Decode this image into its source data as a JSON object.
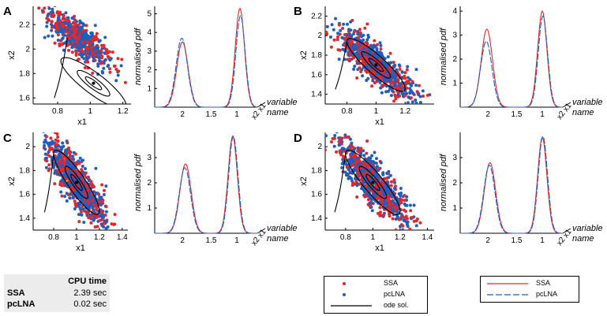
{
  "chart_data": [
    {
      "type": "scatter",
      "panel": "A",
      "xlabel": "x1",
      "ylabel": "x2",
      "xlim": [
        0.65,
        1.25
      ],
      "ylim": [
        1.55,
        2.35
      ],
      "xticks": [
        "0.8",
        "1",
        "1.2"
      ],
      "yticks": [
        "1.6",
        "1.8",
        "2",
        "2.2"
      ],
      "series": [
        {
          "name": "SSA",
          "color": "#e8262a"
        },
        {
          "name": "pcLNA",
          "color": "#1c5fbf"
        },
        {
          "name": "ode sol.",
          "color": "#000000"
        }
      ]
    },
    {
      "type": "line",
      "panel": "A-pdf",
      "ylabel": "normalised pdf",
      "xlabel": "variable name",
      "ylim": [
        0,
        5.4
      ],
      "yticks": [
        "1",
        "2",
        "3",
        "4",
        "5"
      ],
      "xticks": [
        "2",
        "1.5",
        "1"
      ],
      "var_ticks": [
        "x1",
        "x2"
      ],
      "series": [
        {
          "name": "SSA",
          "peaks": [
            3.5,
            5.3
          ]
        },
        {
          "name": "pcLNA",
          "peaks": [
            3.7,
            4.9
          ]
        }
      ]
    },
    {
      "type": "scatter",
      "panel": "B",
      "xlabel": "x1",
      "ylabel": "x2",
      "xlim": [
        0.65,
        1.4
      ],
      "ylim": [
        1.3,
        2.3
      ],
      "xticks": [
        "0.8",
        "1",
        "1.2"
      ],
      "yticks": [
        "1.4",
        "1.6",
        "1.8",
        "2",
        "2.2"
      ]
    },
    {
      "type": "line",
      "panel": "B-pdf",
      "ylabel": "normalised pdf",
      "xlabel": "variable name",
      "ylim": [
        0,
        4.2
      ],
      "yticks": [
        "1",
        "2",
        "3",
        "4"
      ],
      "xticks": [
        "2",
        "1.5",
        "1"
      ],
      "var_ticks": [
        "x1",
        "x2"
      ],
      "series": [
        {
          "name": "SSA",
          "peaks": [
            3.25,
            4.0
          ]
        },
        {
          "name": "pcLNA",
          "peaks": [
            2.75,
            3.8
          ]
        }
      ]
    },
    {
      "type": "scatter",
      "panel": "C",
      "xlabel": "x1",
      "ylabel": "x2",
      "xlim": [
        0.62,
        1.45
      ],
      "ylim": [
        1.3,
        2.12
      ],
      "xticks": [
        "0.8",
        "1",
        "1.2",
        "1.4"
      ],
      "yticks": [
        "1.4",
        "1.6",
        "1.8",
        "2"
      ]
    },
    {
      "type": "line",
      "panel": "C-pdf",
      "ylabel": "normalised pdf",
      "xlabel": "variable name",
      "ylim": [
        0,
        4.0
      ],
      "yticks": [
        "1",
        "2",
        "3"
      ],
      "xticks": [
        "2",
        "1.5",
        "1"
      ],
      "var_ticks": [
        "x1",
        "x2"
      ],
      "series": [
        {
          "name": "SSA",
          "peaks": [
            2.75,
            3.85
          ]
        },
        {
          "name": "pcLNA",
          "peaks": [
            2.6,
            3.85
          ]
        }
      ]
    },
    {
      "type": "scatter",
      "panel": "D",
      "xlabel": "x1",
      "ylabel": "x2",
      "xlim": [
        0.65,
        1.45
      ],
      "ylim": [
        1.3,
        2.12
      ],
      "xticks": [
        "0.8",
        "1",
        "1.2",
        "1.4"
      ],
      "yticks": [
        "1.4",
        "1.6",
        "1.8",
        "2"
      ]
    },
    {
      "type": "line",
      "panel": "D-pdf",
      "ylabel": "normalised pdf",
      "xlabel": "variable name",
      "ylim": [
        0,
        4.0
      ],
      "yticks": [
        "1",
        "2",
        "3"
      ],
      "xticks": [
        "2",
        "1.5",
        "1"
      ],
      "var_ticks": [
        "x1",
        "x2"
      ],
      "series": [
        {
          "name": "SSA",
          "peaks": [
            2.8,
            3.8
          ]
        },
        {
          "name": "pcLNA",
          "peaks": [
            2.7,
            3.85
          ]
        }
      ]
    }
  ],
  "cpu": {
    "header": "CPU time",
    "rows": [
      {
        "name": "SSA",
        "value": "2.39 sec"
      },
      {
        "name": "pcLNA",
        "value": "0.02 sec"
      }
    ]
  },
  "legend_scatter": [
    {
      "label": "SSA",
      "color": "#e8262a"
    },
    {
      "label": "pcLNA",
      "color": "#1c5fbf"
    },
    {
      "label": "ode sol.",
      "color": "#000000"
    }
  ],
  "legend_pdf": [
    {
      "label": "SSA",
      "color": "#e8262a"
    },
    {
      "label": "pcLNA",
      "color": "#1c5fbf"
    }
  ],
  "panel_letters": [
    "A",
    "B",
    "C",
    "D"
  ]
}
